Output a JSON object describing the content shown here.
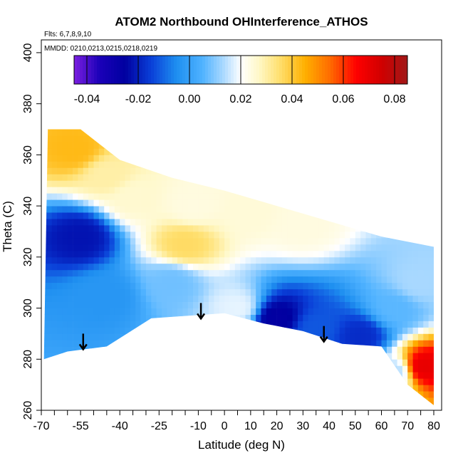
{
  "chart_data": {
    "type": "heatmap",
    "title": "ATOM2 Northbound OHInterference_ATHOS",
    "subtitle_lines": [
      "Flts: 6,7,8,9,10",
      "MMDD: 0210,0213,0215,0218,0219"
    ],
    "xlabel": "Latitude (deg N)",
    "ylabel": "Theta (C)",
    "xlim": [
      -70,
      83
    ],
    "ylim": [
      260,
      405
    ],
    "x_ticks": [
      -70,
      -55,
      -40,
      -25,
      -10,
      0,
      10,
      20,
      30,
      40,
      50,
      60,
      70,
      80
    ],
    "x_tick_labels": [
      "-70",
      "-55",
      "-40",
      "-25",
      "-10",
      "0",
      "10",
      "20",
      "30",
      "40",
      "50",
      "60",
      "70",
      "80"
    ],
    "x_minor_ticks": [
      -65,
      -60,
      -50,
      -45,
      -35,
      -30,
      -20,
      -15,
      -5,
      5,
      15,
      25,
      35,
      45,
      55,
      65,
      75
    ],
    "y_ticks": [
      260,
      280,
      300,
      320,
      340,
      360,
      380,
      400
    ],
    "y_tick_labels": [
      "260",
      "280",
      "300",
      "320",
      "340",
      "360",
      "380",
      "400"
    ],
    "colorbar": {
      "range": [
        -0.045,
        0.085
      ],
      "tick_values": [
        -0.04,
        -0.02,
        0.0,
        0.02,
        0.04,
        0.06,
        0.08
      ],
      "tick_labels": [
        "-0.04",
        "-0.02",
        "0.00",
        "0.02",
        "0.04",
        "0.06",
        "0.08"
      ],
      "colors": [
        {
          "value": -0.045,
          "color": "#7b1fe0"
        },
        {
          "value": -0.035,
          "color": "#1a00b8"
        },
        {
          "value": -0.025,
          "color": "#0000a0"
        },
        {
          "value": -0.015,
          "color": "#0a3fd8"
        },
        {
          "value": -0.005,
          "color": "#1e8ff0"
        },
        {
          "value": 0.005,
          "color": "#4fb2ff"
        },
        {
          "value": 0.013,
          "color": "#a8d8ff"
        },
        {
          "value": 0.02,
          "color": "#ffffff"
        },
        {
          "value": 0.027,
          "color": "#fff8c8"
        },
        {
          "value": 0.035,
          "color": "#ffe070"
        },
        {
          "value": 0.045,
          "color": "#ffb000"
        },
        {
          "value": 0.055,
          "color": "#ff6a00"
        },
        {
          "value": 0.065,
          "color": "#ff0000"
        },
        {
          "value": 0.075,
          "color": "#d00000"
        },
        {
          "value": 0.085,
          "color": "#a01818"
        }
      ]
    },
    "domain_top": [
      [
        -67.5,
        370
      ],
      [
        -55,
        370
      ],
      [
        -40,
        358
      ],
      [
        -20,
        351
      ],
      [
        0,
        346
      ],
      [
        20,
        340
      ],
      [
        40,
        334
      ],
      [
        60,
        328
      ],
      [
        80,
        324
      ]
    ],
    "domain_bottom": [
      [
        -69,
        280
      ],
      [
        -60,
        283
      ],
      [
        -45,
        285
      ],
      [
        -28,
        296
      ],
      [
        0,
        298
      ],
      [
        15,
        294
      ],
      [
        30,
        291
      ],
      [
        45,
        286
      ],
      [
        60,
        285
      ],
      [
        70,
        270
      ],
      [
        80,
        262
      ]
    ],
    "domain_left_bottom": [
      -69,
      280
    ],
    "field_centers": [
      {
        "lat": -57,
        "theta": 362,
        "value": 0.043
      },
      {
        "lat": -45,
        "theta": 352,
        "value": 0.03
      },
      {
        "lat": -35,
        "theta": 343,
        "value": 0.026
      },
      {
        "lat": -12,
        "theta": 340,
        "value": 0.024
      },
      {
        "lat": 10,
        "theta": 338,
        "value": 0.025
      },
      {
        "lat": 30,
        "theta": 333,
        "value": 0.024
      },
      {
        "lat": -15,
        "theta": 325,
        "value": 0.036
      },
      {
        "lat": -55,
        "theta": 328,
        "value": -0.022
      },
      {
        "lat": -45,
        "theta": 305,
        "value": -0.003
      },
      {
        "lat": -20,
        "theta": 310,
        "value": 0.008
      },
      {
        "lat": 5,
        "theta": 300,
        "value": 0.018
      },
      {
        "lat": 20,
        "theta": 296,
        "value": -0.026
      },
      {
        "lat": 35,
        "theta": 292,
        "value": -0.012
      },
      {
        "lat": 52,
        "theta": 289,
        "value": -0.018
      },
      {
        "lat": 65,
        "theta": 300,
        "value": 0.006
      },
      {
        "lat": 74,
        "theta": 310,
        "value": 0.013
      },
      {
        "lat": 76,
        "theta": 277,
        "value": 0.07
      },
      {
        "lat": 65,
        "theta": 275,
        "value": 0.014
      }
    ],
    "arrows": [
      {
        "lat": -54,
        "theta": 290
      },
      {
        "lat": -9,
        "theta": 302
      },
      {
        "lat": 38,
        "theta": 293
      }
    ]
  }
}
